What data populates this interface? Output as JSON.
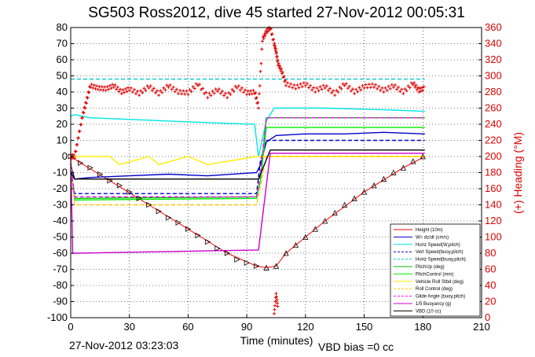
{
  "chart_data": {
    "type": "line",
    "title": "SG503 Ross2012, dive 45 started 27-Nov-2012 00:05:31",
    "xlabel": "Time (minutes)",
    "ylabel_right": "(+) Heading (°M)",
    "footer_left": "27-Nov-2012 03:23:03",
    "footer_right": "VBD bias =0 cc",
    "xlim": [
      0,
      210
    ],
    "ylim": [
      -100,
      80
    ],
    "ylim_right": [
      0,
      360
    ],
    "x_ticks": [
      0,
      30,
      60,
      90,
      120,
      150,
      180,
      210
    ],
    "y_ticks": [
      -100,
      -90,
      -80,
      -70,
      -60,
      -50,
      -40,
      -30,
      -20,
      -10,
      0,
      10,
      20,
      30,
      40,
      50,
      60,
      70,
      80
    ],
    "y_ticks_right": [
      0,
      20,
      40,
      60,
      80,
      100,
      120,
      140,
      160,
      180,
      200,
      220,
      240,
      260,
      280,
      300,
      320,
      340,
      360
    ],
    "grid": true,
    "legend_position": "bottom-right",
    "series": [
      {
        "name": "Height (10m)",
        "color": "#ff0000",
        "style": "solid",
        "x": [
          0,
          5,
          20,
          40,
          60,
          80,
          95,
          100,
          105,
          110,
          130,
          150,
          170,
          181
        ],
        "y": [
          0,
          -4,
          -15,
          -30,
          -45,
          -60,
          -68,
          -69,
          -68,
          -60,
          -40,
          -22,
          -7,
          0
        ]
      },
      {
        "name": "W= dz/dt (cm/s)",
        "color": "#0000cc",
        "style": "solid",
        "x": [
          0,
          2,
          10,
          30,
          50,
          70,
          95,
          97,
          100,
          105,
          120,
          140,
          160,
          181
        ],
        "y": [
          -5,
          -14,
          -13,
          -12,
          -11,
          -12,
          -10,
          -5,
          9,
          13,
          14,
          14,
          15,
          14
        ]
      },
      {
        "name": "Horiz Speed(W,pitch)",
        "color": "#00e5e5",
        "style": "solid",
        "x": [
          0,
          2,
          10,
          30,
          50,
          70,
          94,
          96,
          100,
          104,
          130,
          160,
          181
        ],
        "y": [
          25,
          26,
          24,
          23,
          22,
          21,
          20,
          0,
          22,
          30,
          30,
          29,
          28
        ]
      },
      {
        "name": "Vert Speed(buoy,pitch)",
        "color": "#0000cc",
        "style": "dashed",
        "x": [
          0,
          2,
          95,
          97,
          100,
          181
        ],
        "y": [
          -10,
          -23,
          -23,
          -2,
          10,
          10
        ]
      },
      {
        "name": "Horiz Speed(buoy,pitch)",
        "color": "#00cccc",
        "style": "dashed",
        "x": [
          0,
          5,
          95,
          97,
          100,
          181
        ],
        "y": [
          48,
          48,
          48,
          48,
          48,
          48
        ]
      },
      {
        "name": "PitchUp (deg)",
        "color": "#00bb00",
        "style": "solid",
        "x": [
          0,
          2,
          95,
          97,
          100,
          181
        ],
        "y": [
          -5,
          -26,
          -25,
          -15,
          24,
          24
        ]
      },
      {
        "name": "PitchControl (mm)",
        "color": "#00ee00",
        "style": "solid",
        "x": [
          0,
          2,
          95,
          97,
          100,
          181
        ],
        "y": [
          -5,
          -27,
          -26,
          -15,
          18,
          18
        ]
      },
      {
        "name": "Vehicle Roll Stbd (deg)",
        "color": "#ffee00",
        "style": "solid",
        "x": [
          0,
          2,
          20,
          25,
          40,
          45,
          60,
          70,
          95,
          100,
          120,
          140,
          181
        ],
        "y": [
          0,
          0,
          0,
          -5,
          0,
          -5,
          0,
          -5,
          0,
          0,
          0,
          0,
          0
        ]
      },
      {
        "name": "Roll Control (deg)",
        "color": "#ffcc00",
        "style": "dashed",
        "x": [
          0,
          2,
          95,
          100,
          181
        ],
        "y": [
          0,
          -30,
          -30,
          0,
          0
        ]
      },
      {
        "name": "Glide Angle (buoy,pitch)",
        "color": "#ff00ff",
        "style": "dashed",
        "x": [
          0,
          2,
          95,
          97,
          100,
          181
        ],
        "y": [
          -5,
          -25,
          -25,
          -10,
          24,
          24
        ]
      },
      {
        "name": "1/5 Buoyancy (g)",
        "color": "#cc00cc",
        "style": "solid",
        "x": [
          0,
          1,
          2,
          96,
          102,
          181
        ],
        "y": [
          0,
          -60,
          -60,
          -58,
          2,
          2
        ]
      },
      {
        "name": "VBD (10 cc)",
        "color": "#000000",
        "style": "solid",
        "x": [
          0,
          2,
          96,
          102,
          181
        ],
        "y": [
          -10,
          -14,
          -14,
          4,
          4
        ]
      }
    ],
    "heading_series": {
      "name": "Heading (°M)",
      "color": "#dd0000",
      "style": "markers",
      "x": [
        0,
        2,
        4,
        6,
        8,
        10,
        14,
        18,
        22,
        26,
        30,
        35,
        40,
        45,
        50,
        55,
        60,
        65,
        70,
        75,
        80,
        85,
        90,
        94,
        96,
        98,
        100,
        102,
        104,
        105,
        106,
        108,
        110,
        115,
        120,
        125,
        130,
        135,
        140,
        145,
        150,
        155,
        160,
        165,
        170,
        175,
        178,
        181
      ],
      "y": [
        200,
        200,
        225,
        250,
        268,
        288,
        285,
        284,
        288,
        280,
        284,
        278,
        287,
        278,
        288,
        280,
        279,
        290,
        275,
        283,
        275,
        287,
        279,
        280,
        262,
        345,
        355,
        360,
        340,
        330,
        315,
        305,
        290,
        286,
        290,
        282,
        287,
        278,
        290,
        280,
        287,
        288,
        282,
        288,
        280,
        291,
        282,
        285
      ]
    },
    "heading_isolated": {
      "x": [
        104,
        105,
        106
      ],
      "y": [
        5,
        30,
        10
      ]
    },
    "descent_markers": {
      "x": [
        0,
        5,
        10,
        15,
        20,
        25,
        30,
        35,
        40,
        45,
        50,
        55,
        60,
        65,
        70,
        75,
        80,
        85,
        90,
        95
      ],
      "y": [
        0,
        -4,
        -7,
        -11,
        -15,
        -18,
        -22,
        -26,
        -30,
        -34,
        -38,
        -41,
        -45,
        -49,
        -53,
        -57,
        -60,
        -64,
        -66,
        -68
      ]
    },
    "ascent_markers": {
      "x": [
        100,
        105,
        110,
        115,
        120,
        125,
        130,
        135,
        140,
        145,
        150,
        155,
        160,
        165,
        170,
        175,
        180
      ],
      "y": [
        -69,
        -68,
        -60,
        -55,
        -50,
        -45,
        -40,
        -35,
        -30,
        -26,
        -22,
        -18,
        -14,
        -10,
        -7,
        -3,
        0
      ]
    }
  }
}
